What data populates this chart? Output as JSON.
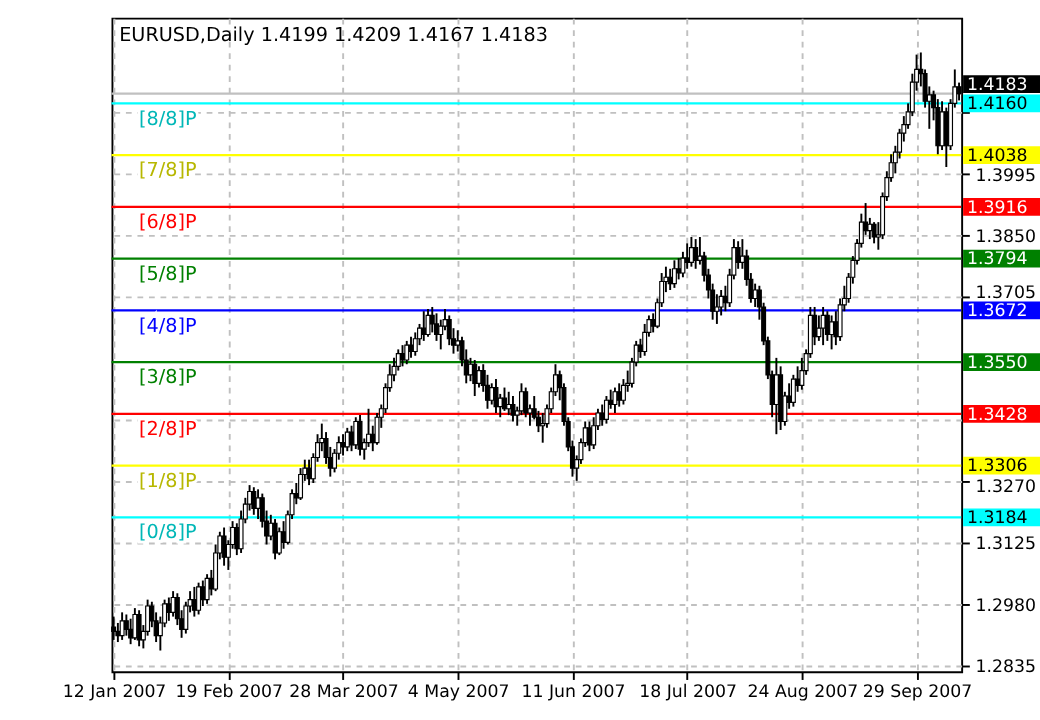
{
  "chart_data": {
    "type": "candlestick",
    "title": "EURUSD,Daily  1.4199 1.4209 1.4167 1.4183",
    "color": "#000000",
    "categories": [
      "12 Jan 2007",
      null,
      null,
      null,
      null,
      null,
      null,
      null,
      null,
      null,
      null,
      null,
      null,
      null,
      null,
      null,
      null,
      null,
      null,
      null,
      null,
      null,
      null,
      null,
      null,
      null,
      null,
      "19 Feb 2007",
      null,
      null,
      null,
      null,
      null,
      null,
      null,
      null,
      null,
      null,
      null,
      null,
      null,
      null,
      null,
      null,
      null,
      null,
      null,
      null,
      null,
      null,
      null,
      null,
      null,
      null,
      "28 Mar 2007",
      null,
      null,
      null,
      null,
      null,
      null,
      null,
      null,
      null,
      null,
      null,
      null,
      null,
      null,
      null,
      null,
      null,
      null,
      null,
      null,
      null,
      null,
      null,
      null,
      null,
      null,
      "4 May 2007",
      null,
      null,
      null,
      null,
      null,
      null,
      null,
      null,
      null,
      null,
      null,
      null,
      null,
      null,
      null,
      null,
      null,
      null,
      null,
      null,
      null,
      null,
      null,
      null,
      null,
      null,
      "11 Jun 2007",
      null,
      null,
      null,
      null,
      null,
      null,
      null,
      null,
      null,
      null,
      null,
      null,
      null,
      null,
      null,
      null,
      null,
      null,
      null,
      null,
      null,
      null,
      null,
      null,
      null,
      null,
      "18 Jul 2007",
      null,
      null,
      null,
      null,
      null,
      null,
      null,
      null,
      null,
      null,
      null,
      null,
      null,
      null,
      null,
      null,
      null,
      null,
      null,
      null,
      null,
      null,
      null,
      null,
      null,
      null,
      "24 Aug 2007",
      null,
      null,
      null,
      null,
      null,
      null,
      null,
      null,
      null,
      null,
      null,
      null,
      null,
      null,
      null,
      null,
      null,
      null,
      null,
      null,
      null,
      null,
      null,
      null,
      null,
      null,
      "29 Sep 2007",
      null,
      null,
      null,
      null,
      null,
      null,
      null,
      null,
      null,
      null
    ],
    "ohlc": [
      [
        1.2925,
        1.295,
        1.2895,
        1.2915
      ],
      [
        1.2915,
        1.2935,
        1.289,
        1.2905
      ],
      [
        1.2905,
        1.296,
        1.2895,
        1.294
      ],
      [
        1.294,
        1.2955,
        1.2905,
        1.292
      ],
      [
        1.292,
        1.2945,
        1.2885,
        1.29
      ],
      [
        1.29,
        1.297,
        1.2895,
        1.2955
      ],
      [
        1.2955,
        1.2965,
        1.288,
        1.2895
      ],
      [
        1.2895,
        1.293,
        1.2875,
        1.2915
      ],
      [
        1.2915,
        1.299,
        1.2905,
        1.2975
      ],
      [
        1.2975,
        1.2985,
        1.2925,
        1.294
      ],
      [
        1.294,
        1.296,
        1.289,
        1.2905
      ],
      [
        1.2905,
        1.295,
        1.287,
        1.2935
      ],
      [
        1.2935,
        1.299,
        1.2925,
        1.298
      ],
      [
        1.298,
        1.2995,
        1.294,
        1.296
      ],
      [
        1.296,
        1.301,
        1.295,
        1.2995
      ],
      [
        1.2995,
        1.3005,
        1.293,
        1.2945
      ],
      [
        1.2945,
        1.2965,
        1.29,
        1.292
      ],
      [
        1.292,
        1.2985,
        1.291,
        1.2975
      ],
      [
        1.2975,
        1.301,
        1.296,
        1.299
      ],
      [
        1.299,
        1.302,
        1.295,
        1.2965
      ],
      [
        1.2965,
        1.303,
        1.2955,
        1.302
      ],
      [
        1.302,
        1.3035,
        1.2975,
        1.299
      ],
      [
        1.299,
        1.305,
        1.298,
        1.304
      ],
      [
        1.304,
        1.306,
        1.3,
        1.3015
      ],
      [
        1.3015,
        1.312,
        1.301,
        1.31
      ],
      [
        1.31,
        1.315,
        1.3085,
        1.314
      ],
      [
        1.314,
        1.316,
        1.307,
        1.309
      ],
      [
        1.309,
        1.313,
        1.306,
        1.312
      ],
      [
        1.312,
        1.3175,
        1.311,
        1.316
      ],
      [
        1.316,
        1.317,
        1.3095,
        1.311
      ],
      [
        1.311,
        1.32,
        1.31,
        1.318
      ],
      [
        1.318,
        1.323,
        1.317,
        1.3215
      ],
      [
        1.3215,
        1.326,
        1.32,
        1.3245
      ],
      [
        1.3245,
        1.3255,
        1.319,
        1.3205
      ],
      [
        1.3205,
        1.325,
        1.318,
        1.323
      ],
      [
        1.323,
        1.324,
        1.316,
        1.3175
      ],
      [
        1.3175,
        1.32,
        1.312,
        1.314
      ],
      [
        1.314,
        1.319,
        1.313,
        1.317
      ],
      [
        1.317,
        1.318,
        1.3085,
        1.31
      ],
      [
        1.31,
        1.316,
        1.3095,
        1.315
      ],
      [
        1.315,
        1.3175,
        1.311,
        1.3125
      ],
      [
        1.3125,
        1.32,
        1.312,
        1.319
      ],
      [
        1.319,
        1.325,
        1.318,
        1.324
      ],
      [
        1.324,
        1.3265,
        1.3215,
        1.323
      ],
      [
        1.323,
        1.33,
        1.3225,
        1.3285
      ],
      [
        1.3285,
        1.332,
        1.327,
        1.33
      ],
      [
        1.33,
        1.332,
        1.326,
        1.3275
      ],
      [
        1.3275,
        1.3335,
        1.3265,
        1.3325
      ],
      [
        1.3325,
        1.338,
        1.3315,
        1.336
      ],
      [
        1.336,
        1.3405,
        1.334,
        1.337
      ],
      [
        1.337,
        1.3385,
        1.331,
        1.3325
      ],
      [
        1.3325,
        1.335,
        1.328,
        1.33
      ],
      [
        1.33,
        1.3345,
        1.329,
        1.3335
      ],
      [
        1.3335,
        1.3375,
        1.332,
        1.336
      ],
      [
        1.336,
        1.338,
        1.333,
        1.335
      ],
      [
        1.335,
        1.3395,
        1.334,
        1.3385
      ],
      [
        1.3385,
        1.34,
        1.334,
        1.3355
      ],
      [
        1.3355,
        1.342,
        1.3345,
        1.341
      ],
      [
        1.341,
        1.3425,
        1.333,
        1.3345
      ],
      [
        1.3345,
        1.337,
        1.332,
        1.336
      ],
      [
        1.336,
        1.344,
        1.335,
        1.338
      ],
      [
        1.338,
        1.34,
        1.334,
        1.336
      ],
      [
        1.336,
        1.343,
        1.3355,
        1.342
      ],
      [
        1.342,
        1.345,
        1.3395,
        1.344
      ],
      [
        1.344,
        1.35,
        1.343,
        1.349
      ],
      [
        1.349,
        1.3545,
        1.348,
        1.352
      ],
      [
        1.352,
        1.356,
        1.3505,
        1.354
      ],
      [
        1.354,
        1.358,
        1.353,
        1.357
      ],
      [
        1.357,
        1.359,
        1.354,
        1.3555
      ],
      [
        1.3555,
        1.36,
        1.3545,
        1.359
      ],
      [
        1.359,
        1.361,
        1.356,
        1.3575
      ],
      [
        1.3575,
        1.362,
        1.3565,
        1.3605
      ],
      [
        1.3605,
        1.364,
        1.359,
        1.363
      ],
      [
        1.363,
        1.367,
        1.36,
        1.3615
      ],
      [
        1.3615,
        1.3675,
        1.361,
        1.366
      ],
      [
        1.366,
        1.368,
        1.362,
        1.364
      ],
      [
        1.364,
        1.3665,
        1.36,
        1.3615
      ],
      [
        1.3615,
        1.365,
        1.358,
        1.3635
      ],
      [
        1.3635,
        1.3675,
        1.3625,
        1.365
      ],
      [
        1.365,
        1.366,
        1.359,
        1.3605
      ],
      [
        1.3605,
        1.363,
        1.357,
        1.359
      ],
      [
        1.359,
        1.3625,
        1.3575,
        1.36
      ],
      [
        1.36,
        1.361,
        1.354,
        1.3555
      ],
      [
        1.3555,
        1.358,
        1.35,
        1.352
      ],
      [
        1.352,
        1.356,
        1.3505,
        1.3545
      ],
      [
        1.3545,
        1.3555,
        1.347,
        1.35
      ],
      [
        1.35,
        1.354,
        1.349,
        1.353
      ],
      [
        1.353,
        1.3545,
        1.348,
        1.3495
      ],
      [
        1.3495,
        1.352,
        1.344,
        1.346
      ],
      [
        1.346,
        1.35,
        1.345,
        1.349
      ],
      [
        1.349,
        1.351,
        1.343,
        1.3445
      ],
      [
        1.3445,
        1.3475,
        1.342,
        1.3465
      ],
      [
        1.3465,
        1.349,
        1.3435,
        1.344
      ],
      [
        1.344,
        1.348,
        1.3425,
        1.345
      ],
      [
        1.345,
        1.347,
        1.341,
        1.3425
      ],
      [
        1.3425,
        1.3445,
        1.34,
        1.3435
      ],
      [
        1.3435,
        1.35,
        1.3425,
        1.348
      ],
      [
        1.348,
        1.349,
        1.342,
        1.343
      ],
      [
        1.343,
        1.345,
        1.34,
        1.344
      ],
      [
        1.344,
        1.347,
        1.3415,
        1.342
      ],
      [
        1.342,
        1.3435,
        1.3385,
        1.34
      ],
      [
        1.34,
        1.343,
        1.336,
        1.3405
      ],
      [
        1.3405,
        1.345,
        1.3395,
        1.344
      ],
      [
        1.344,
        1.349,
        1.343,
        1.348
      ],
      [
        1.348,
        1.3545,
        1.347,
        1.352
      ],
      [
        1.352,
        1.353,
        1.346,
        1.349
      ],
      [
        1.349,
        1.35,
        1.34,
        1.341
      ],
      [
        1.341,
        1.342,
        1.334,
        1.335
      ],
      [
        1.335,
        1.3365,
        1.328,
        1.33
      ],
      [
        1.33,
        1.333,
        1.327,
        1.332
      ],
      [
        1.332,
        1.337,
        1.331,
        1.336
      ],
      [
        1.336,
        1.341,
        1.335,
        1.3395
      ],
      [
        1.3395,
        1.341,
        1.334,
        1.3355
      ],
      [
        1.3355,
        1.342,
        1.3345,
        1.34
      ],
      [
        1.34,
        1.344,
        1.339,
        1.343
      ],
      [
        1.343,
        1.345,
        1.34,
        1.3415
      ],
      [
        1.3415,
        1.347,
        1.3405,
        1.346
      ],
      [
        1.346,
        1.3485,
        1.344,
        1.345
      ],
      [
        1.345,
        1.349,
        1.343,
        1.348
      ],
      [
        1.348,
        1.35,
        1.3445,
        1.346
      ],
      [
        1.346,
        1.351,
        1.345,
        1.3495
      ],
      [
        1.3495,
        1.353,
        1.348,
        1.35
      ],
      [
        1.35,
        1.356,
        1.349,
        1.355
      ],
      [
        1.355,
        1.36,
        1.354,
        1.359
      ],
      [
        1.359,
        1.3605,
        1.356,
        1.3575
      ],
      [
        1.3575,
        1.364,
        1.3565,
        1.362
      ],
      [
        1.362,
        1.366,
        1.361,
        1.365
      ],
      [
        1.365,
        1.3665,
        1.362,
        1.3635
      ],
      [
        1.3635,
        1.37,
        1.363,
        1.369
      ],
      [
        1.369,
        1.376,
        1.368,
        1.374
      ],
      [
        1.374,
        1.3775,
        1.3715,
        1.375
      ],
      [
        1.375,
        1.377,
        1.372,
        1.3735
      ],
      [
        1.3735,
        1.379,
        1.3725,
        1.377
      ],
      [
        1.377,
        1.3795,
        1.3745,
        1.376
      ],
      [
        1.376,
        1.381,
        1.375,
        1.3795
      ],
      [
        1.3795,
        1.383,
        1.377,
        1.3785
      ],
      [
        1.3785,
        1.3845,
        1.3775,
        1.382
      ],
      [
        1.382,
        1.384,
        1.377,
        1.379
      ],
      [
        1.379,
        1.3845,
        1.378,
        1.38
      ],
      [
        1.38,
        1.381,
        1.374,
        1.3755
      ],
      [
        1.3755,
        1.377,
        1.37,
        1.372
      ],
      [
        1.372,
        1.3735,
        1.365,
        1.367
      ],
      [
        1.367,
        1.371,
        1.364,
        1.368
      ],
      [
        1.368,
        1.372,
        1.366,
        1.3705
      ],
      [
        1.3705,
        1.373,
        1.367,
        1.369
      ],
      [
        1.369,
        1.377,
        1.368,
        1.3755
      ],
      [
        1.3755,
        1.384,
        1.3745,
        1.382
      ],
      [
        1.382,
        1.3835,
        1.377,
        1.3785
      ],
      [
        1.3785,
        1.384,
        1.377,
        1.38
      ],
      [
        1.38,
        1.3815,
        1.373,
        1.3745
      ],
      [
        1.3745,
        1.376,
        1.369,
        1.37
      ],
      [
        1.37,
        1.3735,
        1.368,
        1.372
      ],
      [
        1.372,
        1.373,
        1.365,
        1.368
      ],
      [
        1.368,
        1.369,
        1.359,
        1.36
      ],
      [
        1.36,
        1.361,
        1.351,
        1.352
      ],
      [
        1.352,
        1.353,
        1.342,
        1.345
      ],
      [
        1.345,
        1.356,
        1.338,
        1.352
      ],
      [
        1.352,
        1.354,
        1.339,
        1.341
      ],
      [
        1.341,
        1.348,
        1.34,
        1.347
      ],
      [
        1.347,
        1.35,
        1.344,
        1.3455
      ],
      [
        1.3455,
        1.352,
        1.3445,
        1.351
      ],
      [
        1.351,
        1.354,
        1.348,
        1.3495
      ],
      [
        1.3495,
        1.356,
        1.3485,
        1.353
      ],
      [
        1.353,
        1.358,
        1.352,
        1.357
      ],
      [
        1.357,
        1.368,
        1.356,
        1.366
      ],
      [
        1.366,
        1.368,
        1.359,
        1.361
      ],
      [
        1.361,
        1.366,
        1.36,
        1.363
      ],
      [
        1.363,
        1.368,
        1.359,
        1.366
      ],
      [
        1.366,
        1.367,
        1.36,
        1.3615
      ],
      [
        1.3615,
        1.366,
        1.358,
        1.3645
      ],
      [
        1.3645,
        1.367,
        1.359,
        1.361
      ],
      [
        1.361,
        1.37,
        1.36,
        1.3685
      ],
      [
        1.3685,
        1.373,
        1.367,
        1.37
      ],
      [
        1.37,
        1.376,
        1.369,
        1.375
      ],
      [
        1.375,
        1.38,
        1.3735,
        1.379
      ],
      [
        1.379,
        1.384,
        1.378,
        1.383
      ],
      [
        1.383,
        1.39,
        1.382,
        1.388
      ],
      [
        1.388,
        1.3925,
        1.385,
        1.386
      ],
      [
        1.386,
        1.389,
        1.384,
        1.3875
      ],
      [
        1.3875,
        1.388,
        1.383,
        1.3845
      ],
      [
        1.3845,
        1.388,
        1.3815,
        1.385
      ],
      [
        1.385,
        1.395,
        1.384,
        1.394
      ],
      [
        1.394,
        1.4,
        1.393,
        1.3985
      ],
      [
        1.3985,
        1.404,
        1.3975,
        1.402
      ],
      [
        1.402,
        1.406,
        1.3995,
        1.4045
      ],
      [
        1.4045,
        1.41,
        1.403,
        1.409
      ],
      [
        1.409,
        1.413,
        1.407,
        1.411
      ],
      [
        1.411,
        1.416,
        1.41,
        1.414
      ],
      [
        1.414,
        1.423,
        1.413,
        1.421
      ],
      [
        1.421,
        1.4275,
        1.419,
        1.424
      ],
      [
        1.424,
        1.428,
        1.42,
        1.423
      ],
      [
        1.423,
        1.424,
        1.415,
        1.4165
      ],
      [
        1.4165,
        1.42,
        1.41,
        1.418
      ],
      [
        1.418,
        1.419,
        1.412,
        1.415
      ],
      [
        1.415,
        1.417,
        1.404,
        1.406
      ],
      [
        1.406,
        1.4165,
        1.405,
        1.414
      ],
      [
        1.414,
        1.415,
        1.401,
        1.406
      ],
      [
        1.406,
        1.417,
        1.405,
        1.416
      ],
      [
        1.416,
        1.424,
        1.415,
        1.4199
      ],
      [
        1.4199,
        1.4209,
        1.4167,
        1.4183
      ]
    ],
    "ylim": [
      1.2821,
      1.4362
    ],
    "yticks": [
      1.2835,
      {
        "value": 1.298,
        "label": "1.2980"
      },
      1.3125,
      {
        "value": 1.327,
        "label": "1.3270"
      },
      {
        "value": 1.3415,
        "label": null
      },
      1.3705,
      {
        "value": 1.385,
        "label": "1.3850"
      },
      1.3995,
      {
        "value": 1.414,
        "label": null
      }
    ],
    "grid": true,
    "ref_lines": [
      {
        "axis": "y",
        "value": 1.4183,
        "label": "1.4183",
        "color": "#c0c0c0"
      },
      {
        "axis": "y",
        "value": 1.416,
        "label": "1.4160",
        "color": "#00ffff"
      },
      {
        "axis": "y",
        "value": 1.4038,
        "label": "1.4038",
        "color": "#ffff00"
      },
      {
        "axis": "y",
        "value": 1.3916,
        "label": "1.3916",
        "color": "#ff0000"
      },
      {
        "axis": "y",
        "value": 1.3794,
        "label": "1.3794",
        "color": "#008000"
      },
      {
        "axis": "y",
        "value": 1.3672,
        "label": "1.3672",
        "color": "#0000ff"
      },
      {
        "axis": "y",
        "value": 1.355,
        "label": "1.3550",
        "color": "#008000"
      },
      {
        "axis": "y",
        "value": 1.3428,
        "label": "1.3428",
        "color": "#ff0000"
      },
      {
        "axis": "y",
        "value": 1.3306,
        "label": "1.3306",
        "color": "#ffff00"
      },
      {
        "axis": "y",
        "value": 1.3184,
        "label": "1.3184",
        "color": "#00ffff"
      }
    ],
    "annotations": [
      {
        "text": "[8/8]P",
        "y": 1.416
      },
      {
        "text": "[7/8]P",
        "y": 1.4038
      },
      {
        "text": "[6/8]P",
        "y": 1.3916
      },
      {
        "text": "[5/8]P",
        "y": 1.3794
      },
      {
        "text": "[4/8]P",
        "y": 1.3672
      },
      {
        "text": "[3/8]P",
        "y": 1.355
      },
      {
        "text": "[2/8]P",
        "y": 1.3428
      },
      {
        "text": "[1/8]P",
        "y": 1.3306
      },
      {
        "text": "[0/8]P",
        "y": 1.3184
      }
    ]
  }
}
